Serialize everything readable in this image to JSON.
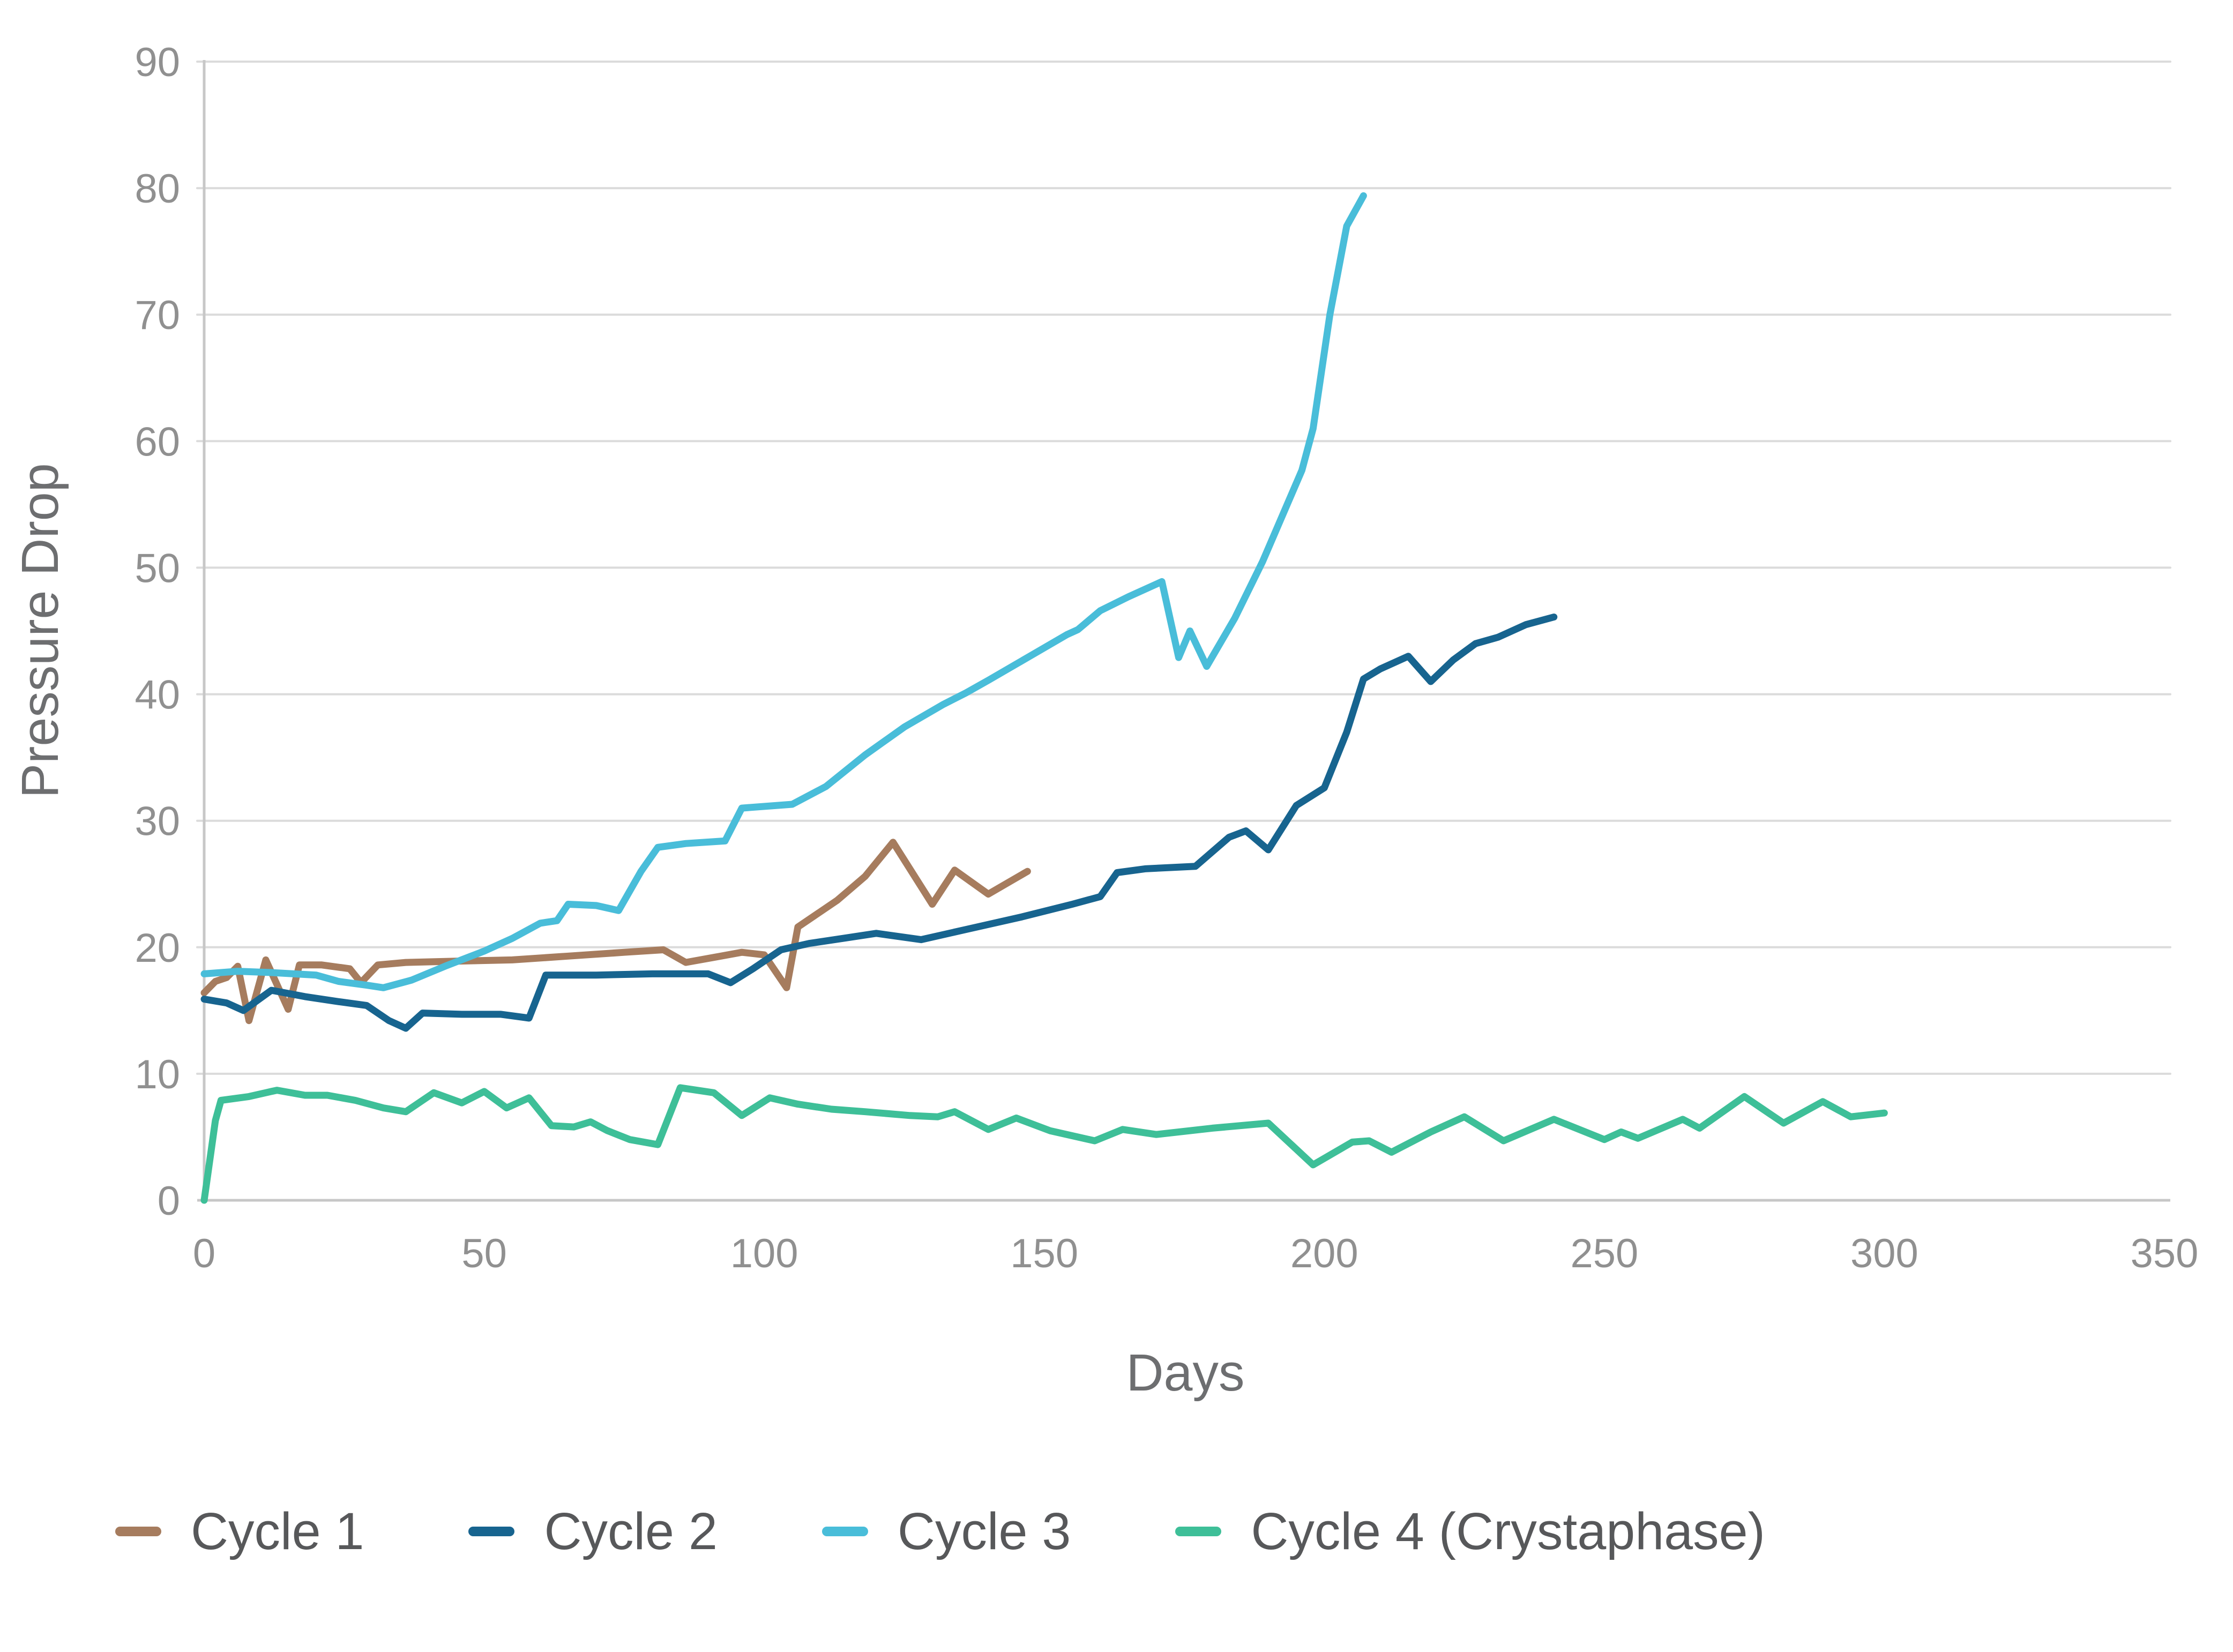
{
  "chart_data": {
    "type": "line",
    "title": "",
    "xlabel": "Days",
    "ylabel": "Pressure Drop",
    "xlim": [
      0,
      350
    ],
    "ylim": [
      0,
      90
    ],
    "xticks": [
      0,
      50,
      100,
      150,
      200,
      250,
      300,
      350
    ],
    "yticks": [
      0,
      10,
      20,
      30,
      40,
      50,
      60,
      70,
      80,
      90
    ],
    "grid": "horizontal",
    "legend_position": "bottom",
    "series": [
      {
        "name": "Cycle 1",
        "color": "#a67c5e",
        "points": [
          [
            0,
            16.4
          ],
          [
            2,
            17.3
          ],
          [
            4,
            17.6
          ],
          [
            6,
            18.5
          ],
          [
            8,
            14.2
          ],
          [
            11,
            19.0
          ],
          [
            15,
            15.1
          ],
          [
            17,
            18.6
          ],
          [
            21,
            18.6
          ],
          [
            26,
            18.3
          ],
          [
            28,
            17.2
          ],
          [
            31,
            18.6
          ],
          [
            36,
            18.8
          ],
          [
            45,
            18.9
          ],
          [
            55,
            19.0
          ],
          [
            65,
            19.3
          ],
          [
            75,
            19.6
          ],
          [
            82,
            19.8
          ],
          [
            86,
            18.8
          ],
          [
            91,
            19.2
          ],
          [
            96,
            19.6
          ],
          [
            100,
            19.4
          ],
          [
            104,
            16.8
          ],
          [
            106,
            21.6
          ],
          [
            113,
            23.7
          ],
          [
            118,
            25.6
          ],
          [
            123,
            28.3
          ],
          [
            130,
            23.4
          ],
          [
            134,
            26.1
          ],
          [
            140,
            24.2
          ],
          [
            147,
            26.0
          ]
        ]
      },
      {
        "name": "Cycle 2",
        "color": "#17648f",
        "points": [
          [
            0,
            15.9
          ],
          [
            4,
            15.6
          ],
          [
            7,
            15.0
          ],
          [
            12,
            16.6
          ],
          [
            18,
            16.1
          ],
          [
            24,
            15.7
          ],
          [
            29,
            15.4
          ],
          [
            33,
            14.2
          ],
          [
            36,
            13.6
          ],
          [
            39,
            14.8
          ],
          [
            46,
            14.7
          ],
          [
            53,
            14.7
          ],
          [
            58,
            14.4
          ],
          [
            61,
            17.8
          ],
          [
            70,
            17.8
          ],
          [
            80,
            17.9
          ],
          [
            90,
            17.9
          ],
          [
            94,
            17.2
          ],
          [
            98,
            18.3
          ],
          [
            103,
            19.8
          ],
          [
            108,
            20.3
          ],
          [
            114,
            20.7
          ],
          [
            120,
            21.1
          ],
          [
            128,
            20.6
          ],
          [
            136,
            21.4
          ],
          [
            146,
            22.4
          ],
          [
            155,
            23.4
          ],
          [
            160,
            24.0
          ],
          [
            163,
            25.9
          ],
          [
            168,
            26.2
          ],
          [
            177,
            26.4
          ],
          [
            183,
            28.7
          ],
          [
            186,
            29.2
          ],
          [
            190,
            27.7
          ],
          [
            195,
            31.2
          ],
          [
            200,
            32.6
          ],
          [
            204,
            37.0
          ],
          [
            207,
            41.2
          ],
          [
            210,
            42.0
          ],
          [
            215,
            43.0
          ],
          [
            219,
            41.0
          ],
          [
            223,
            42.7
          ],
          [
            227,
            44.0
          ],
          [
            231,
            44.5
          ],
          [
            236,
            45.5
          ],
          [
            241,
            46.1
          ]
        ]
      },
      {
        "name": "Cycle 3",
        "color": "#49bdd9",
        "points": [
          [
            0,
            17.9
          ],
          [
            6,
            18.1
          ],
          [
            12,
            18.0
          ],
          [
            20,
            17.8
          ],
          [
            24,
            17.3
          ],
          [
            29,
            17.0
          ],
          [
            32,
            16.8
          ],
          [
            37,
            17.4
          ],
          [
            43,
            18.5
          ],
          [
            50,
            19.7
          ],
          [
            55,
            20.7
          ],
          [
            60,
            21.9
          ],
          [
            63,
            22.1
          ],
          [
            65,
            23.4
          ],
          [
            70,
            23.3
          ],
          [
            74,
            22.9
          ],
          [
            78,
            26.0
          ],
          [
            81,
            27.9
          ],
          [
            86,
            28.2
          ],
          [
            93,
            28.4
          ],
          [
            96,
            31.0
          ],
          [
            105,
            31.3
          ],
          [
            111,
            32.7
          ],
          [
            118,
            35.2
          ],
          [
            125,
            37.4
          ],
          [
            132,
            39.2
          ],
          [
            136,
            40.1
          ],
          [
            140,
            41.1
          ],
          [
            147,
            42.9
          ],
          [
            154,
            44.7
          ],
          [
            156,
            45.1
          ],
          [
            160,
            46.6
          ],
          [
            165,
            47.7
          ],
          [
            171,
            48.9
          ],
          [
            174,
            42.9
          ],
          [
            176,
            45.0
          ],
          [
            179,
            42.2
          ],
          [
            184,
            46.0
          ],
          [
            189,
            50.5
          ],
          [
            196,
            57.7
          ],
          [
            198,
            61.0
          ],
          [
            201,
            70.0
          ],
          [
            204,
            77.0
          ],
          [
            207,
            79.4
          ]
        ]
      },
      {
        "name": "Cycle 4 (Crystaphase)",
        "color": "#3ebf98",
        "points": [
          [
            0,
            0
          ],
          [
            2,
            6.3
          ],
          [
            3,
            7.9
          ],
          [
            8,
            8.2
          ],
          [
            12,
            8.6
          ],
          [
            13,
            8.7
          ],
          [
            18,
            8.3
          ],
          [
            22,
            8.3
          ],
          [
            27,
            7.9
          ],
          [
            32,
            7.3
          ],
          [
            36,
            7.0
          ],
          [
            41,
            8.5
          ],
          [
            46,
            7.7
          ],
          [
            50,
            8.6
          ],
          [
            54,
            7.3
          ],
          [
            58,
            8.1
          ],
          [
            62,
            5.9
          ],
          [
            66,
            5.8
          ],
          [
            69,
            6.2
          ],
          [
            72,
            5.5
          ],
          [
            76,
            4.8
          ],
          [
            81,
            4.4
          ],
          [
            85,
            8.9
          ],
          [
            91,
            8.5
          ],
          [
            96,
            6.7
          ],
          [
            101,
            8.1
          ],
          [
            106,
            7.6
          ],
          [
            112,
            7.2
          ],
          [
            118,
            7.0
          ],
          [
            126,
            6.7
          ],
          [
            131,
            6.6
          ],
          [
            134,
            7.0
          ],
          [
            140,
            5.6
          ],
          [
            145,
            6.5
          ],
          [
            151,
            5.5
          ],
          [
            159,
            4.7
          ],
          [
            164,
            5.6
          ],
          [
            170,
            5.2
          ],
          [
            180,
            5.7
          ],
          [
            190,
            6.1
          ],
          [
            198,
            2.8
          ],
          [
            205,
            4.6
          ],
          [
            208,
            4.7
          ],
          [
            212,
            3.8
          ],
          [
            219,
            5.4
          ],
          [
            225,
            6.6
          ],
          [
            232,
            4.7
          ],
          [
            241,
            6.4
          ],
          [
            250,
            4.8
          ],
          [
            253,
            5.4
          ],
          [
            256,
            4.9
          ],
          [
            264,
            6.4
          ],
          [
            267,
            5.7
          ],
          [
            275,
            8.2
          ],
          [
            282,
            6.1
          ],
          [
            289,
            7.8
          ],
          [
            294,
            6.6
          ],
          [
            300,
            6.9
          ]
        ]
      }
    ],
    "style": {
      "background": "#ffffff",
      "grid_color": "#dbdbdb",
      "axis_color": "#c7c7c7",
      "tick_label_color": "#909090",
      "axis_title_color": "#6d6e70",
      "legend_text_color": "#57585a"
    }
  }
}
